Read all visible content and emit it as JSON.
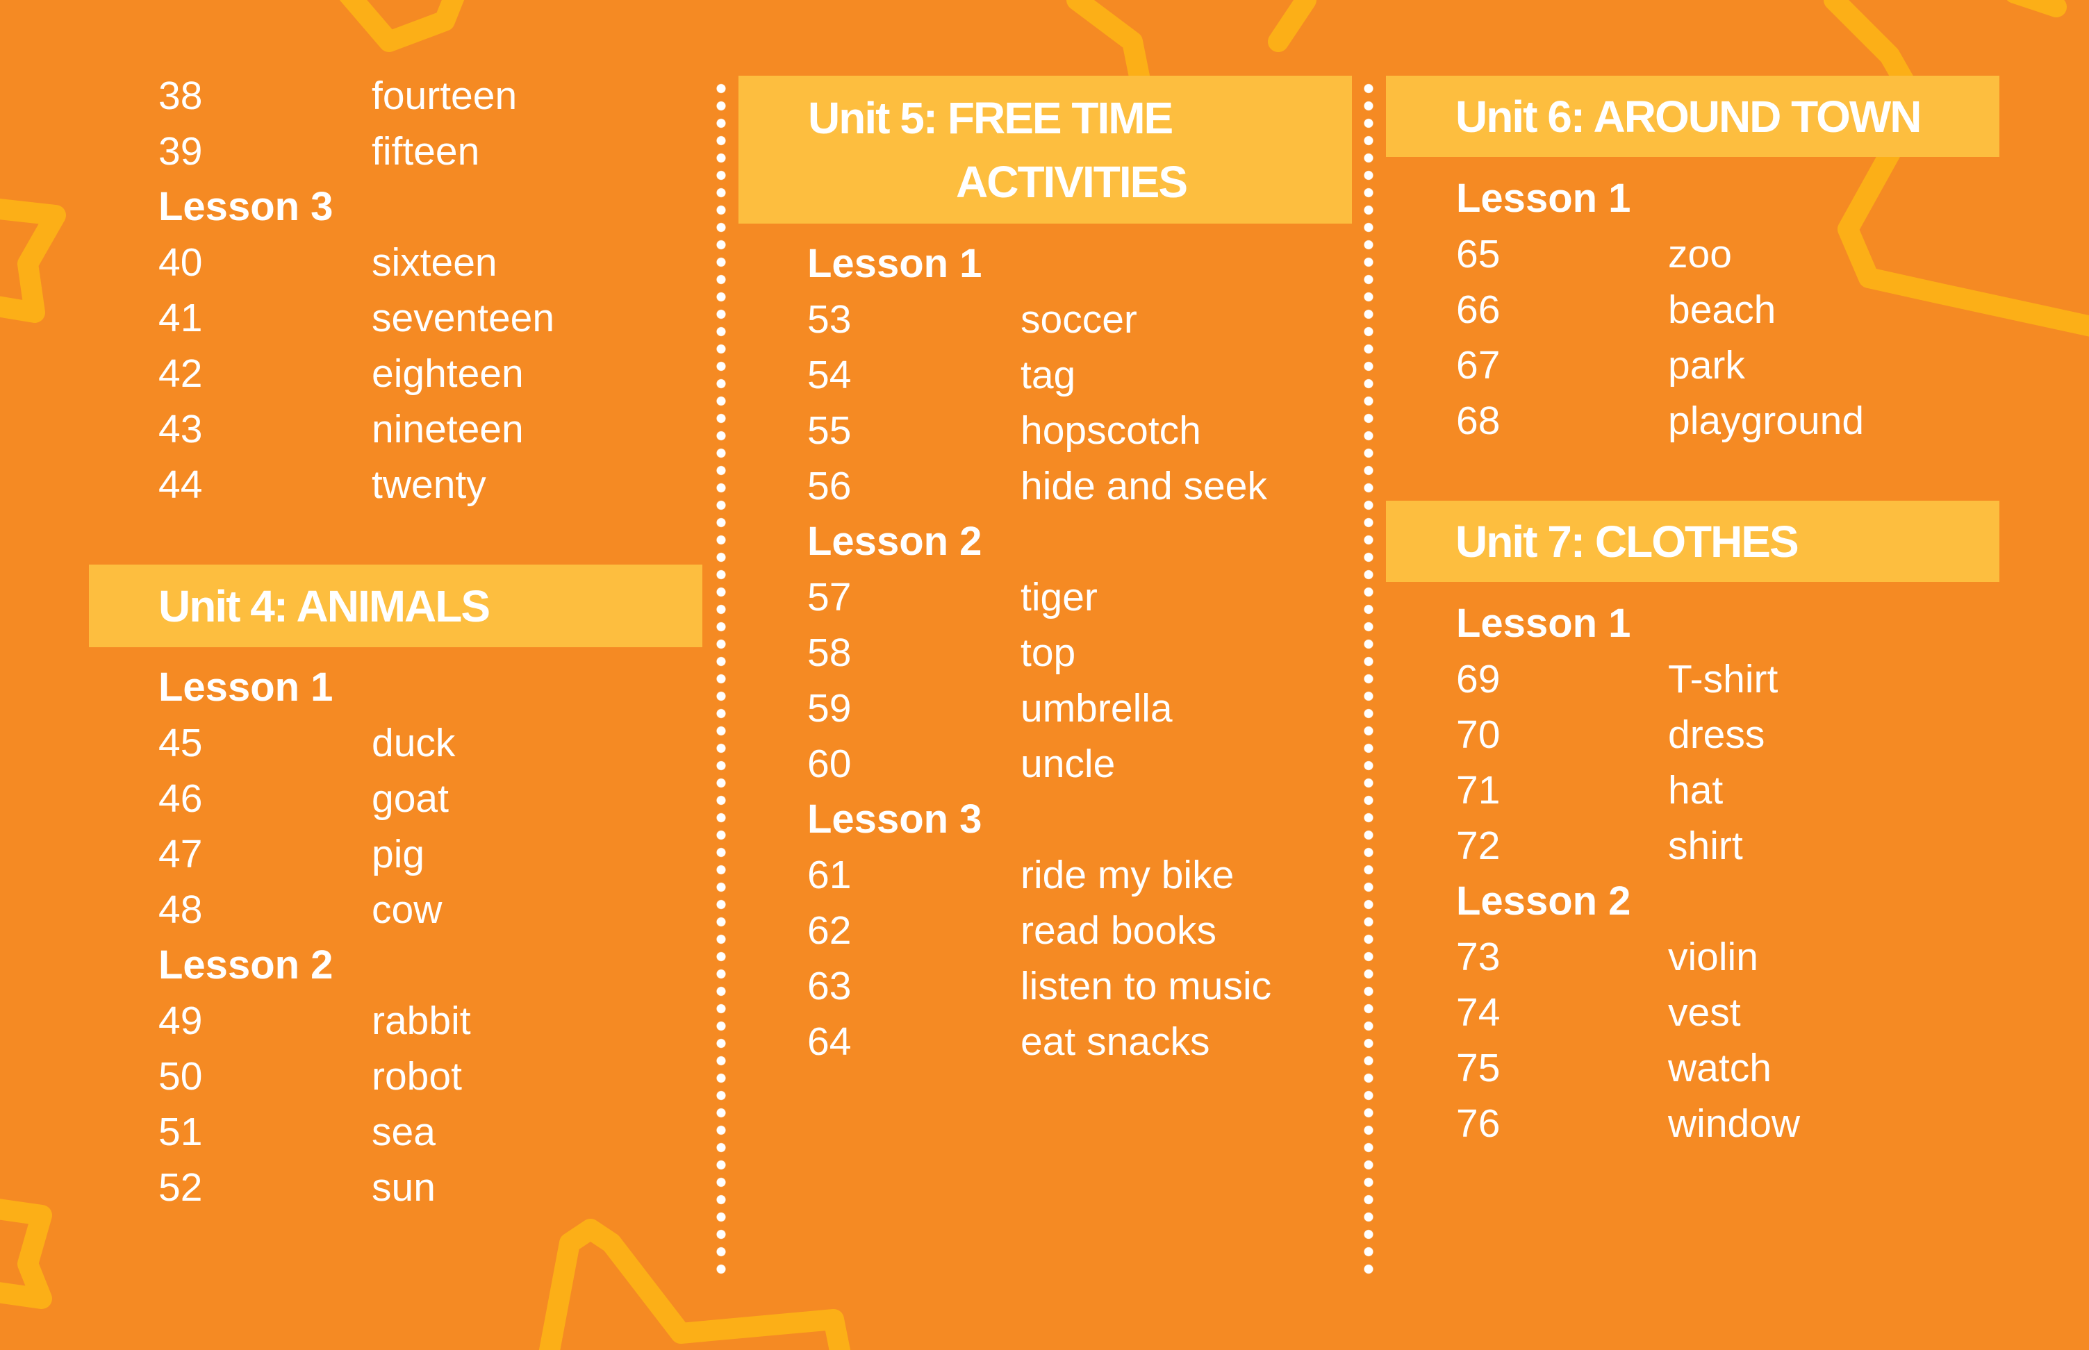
{
  "colors": {
    "background": "#F58A23",
    "band": "#FDBE3F",
    "text": "#FFFFFF",
    "star": "#FCAF17"
  },
  "column1": {
    "top_rows": [
      {
        "num": "38",
        "word": "fourteen"
      },
      {
        "num": "39",
        "word": "fifteen"
      },
      {
        "lesson": "Lesson 3"
      },
      {
        "num": "40",
        "word": "sixteen"
      },
      {
        "num": "41",
        "word": "seventeen"
      },
      {
        "num": "42",
        "word": "eighteen"
      },
      {
        "num": "43",
        "word": "nineteen"
      },
      {
        "num": "44",
        "word": "twenty"
      }
    ],
    "unit": {
      "title": "Unit 4: ANIMALS",
      "rows": [
        {
          "lesson": "Lesson 1"
        },
        {
          "num": "45",
          "word": "duck"
        },
        {
          "num": "46",
          "word": "goat"
        },
        {
          "num": "47",
          "word": "pig"
        },
        {
          "num": "48",
          "word": "cow"
        },
        {
          "lesson": "Lesson 2"
        },
        {
          "num": "49",
          "word": "rabbit"
        },
        {
          "num": "50",
          "word": "robot"
        },
        {
          "num": "51",
          "word": "sea"
        },
        {
          "num": "52",
          "word": "sun"
        }
      ]
    }
  },
  "column2": {
    "unit": {
      "title_line1": "Unit 5: FREE TIME",
      "title_line2": "ACTIVITIES",
      "rows": [
        {
          "lesson": "Lesson 1"
        },
        {
          "num": "53",
          "word": "soccer"
        },
        {
          "num": "54",
          "word": "tag"
        },
        {
          "num": "55",
          "word": "hopscotch"
        },
        {
          "num": "56",
          "word": "hide and seek"
        },
        {
          "lesson": "Lesson 2"
        },
        {
          "num": "57",
          "word": "tiger"
        },
        {
          "num": "58",
          "word": "top"
        },
        {
          "num": "59",
          "word": "umbrella"
        },
        {
          "num": "60",
          "word": "uncle"
        },
        {
          "lesson": "Lesson 3"
        },
        {
          "num": "61",
          "word": "ride my bike"
        },
        {
          "num": "62",
          "word": "read books"
        },
        {
          "num": "63",
          "word": "listen to music"
        },
        {
          "num": "64",
          "word": "eat snacks"
        }
      ]
    }
  },
  "column3": {
    "unit6": {
      "title": "Unit 6: AROUND TOWN",
      "rows": [
        {
          "lesson": "Lesson 1"
        },
        {
          "num": "65",
          "word": "zoo"
        },
        {
          "num": "66",
          "word": "beach"
        },
        {
          "num": "67",
          "word": "park"
        },
        {
          "num": "68",
          "word": "playground"
        }
      ]
    },
    "unit7": {
      "title": "Unit 7: CLOTHES",
      "rows": [
        {
          "lesson": "Lesson 1"
        },
        {
          "num": "69",
          "word": "T-shirt"
        },
        {
          "num": "70",
          "word": "dress"
        },
        {
          "num": "71",
          "word": "hat"
        },
        {
          "num": "72",
          "word": "shirt"
        },
        {
          "lesson": "Lesson 2"
        },
        {
          "num": "73",
          "word": "violin"
        },
        {
          "num": "74",
          "word": "vest"
        },
        {
          "num": "75",
          "word": "watch"
        },
        {
          "num": "76",
          "word": "window"
        }
      ]
    }
  }
}
